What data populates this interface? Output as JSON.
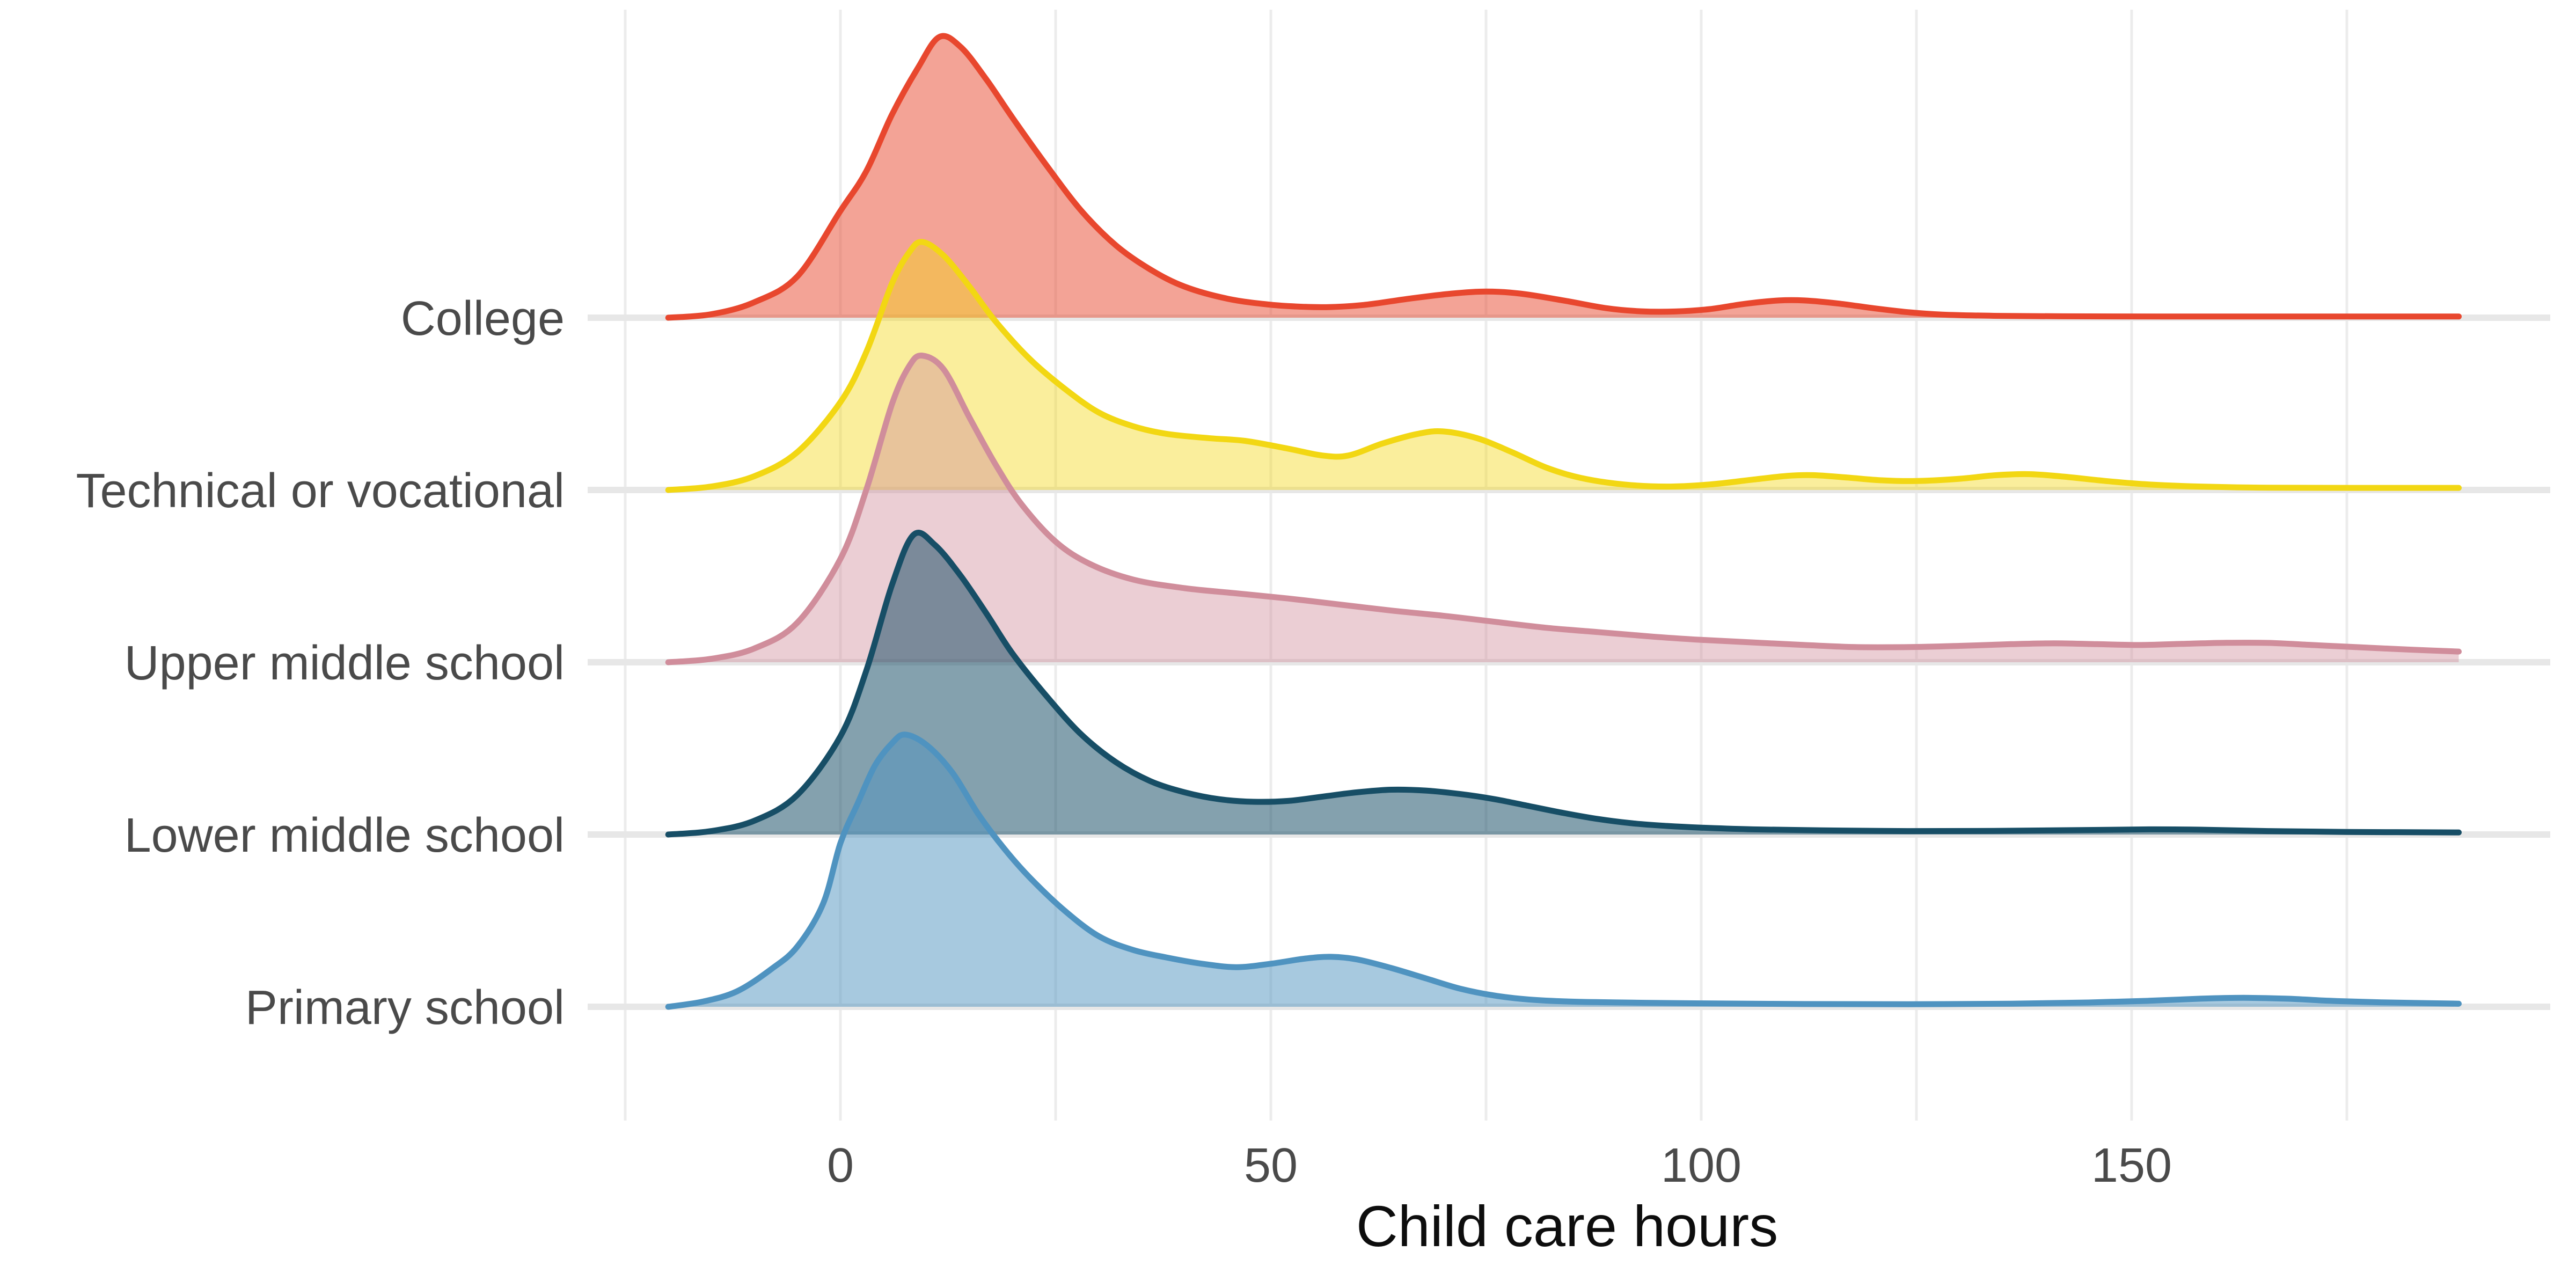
{
  "chart_data": {
    "type": "area",
    "subtype": "ridgeline-density",
    "title": "",
    "xlabel": "Child care hours",
    "ylabel": "",
    "xlim": [
      -30,
      199
    ],
    "x_ticks": [
      0,
      50,
      100,
      150
    ],
    "x_gridlines": [
      -25,
      0,
      25,
      50,
      75,
      100,
      125,
      150,
      175
    ],
    "grid": "vertical-only",
    "legend": "none",
    "background": "#ffffff",
    "gridline_color": "#ececec",
    "baseline_band_color": "#e7e7e7",
    "tick_label_color": "#4a4a4a",
    "axis_title_color": "#0d0d0d",
    "categories": [
      "College",
      "Technical or vocational",
      "Upper middle school",
      "Lower middle school",
      "Primary school"
    ],
    "units": {
      "x": "hours",
      "height": "density, fraction of row spacing"
    },
    "series": [
      {
        "name": "College",
        "color": "#e8472e",
        "fill_opacity": 0.5,
        "points": [
          [
            -20,
            0
          ],
          [
            -15,
            0.02
          ],
          [
            -10,
            0.09
          ],
          [
            -5,
            0.24
          ],
          [
            0,
            0.62
          ],
          [
            3,
            0.85
          ],
          [
            6,
            1.18
          ],
          [
            9,
            1.45
          ],
          [
            11.5,
            1.63
          ],
          [
            14,
            1.57
          ],
          [
            17,
            1.38
          ],
          [
            20,
            1.16
          ],
          [
            24,
            0.88
          ],
          [
            28,
            0.62
          ],
          [
            32,
            0.42
          ],
          [
            36,
            0.28
          ],
          [
            40,
            0.18
          ],
          [
            45,
            0.11
          ],
          [
            50,
            0.075
          ],
          [
            54,
            0.063
          ],
          [
            57,
            0.062
          ],
          [
            61,
            0.075
          ],
          [
            66,
            0.11
          ],
          [
            71,
            0.14
          ],
          [
            75,
            0.152
          ],
          [
            79,
            0.14
          ],
          [
            84,
            0.1
          ],
          [
            89,
            0.055
          ],
          [
            93,
            0.037
          ],
          [
            97,
            0.036
          ],
          [
            101,
            0.05
          ],
          [
            105,
            0.08
          ],
          [
            109,
            0.1
          ],
          [
            112,
            0.1
          ],
          [
            116,
            0.082
          ],
          [
            120,
            0.055
          ],
          [
            124,
            0.032
          ],
          [
            128,
            0.018
          ],
          [
            134,
            0.011
          ],
          [
            142,
            0.008
          ],
          [
            155,
            0.007
          ],
          [
            170,
            0.007
          ],
          [
            188,
            0.007
          ]
        ]
      },
      {
        "name": "Technical or vocational",
        "color": "#f2d713",
        "fill_opacity": 0.42,
        "points": [
          [
            -20,
            0
          ],
          [
            -15,
            0.02
          ],
          [
            -10,
            0.08
          ],
          [
            -5,
            0.22
          ],
          [
            0,
            0.51
          ],
          [
            3,
            0.8
          ],
          [
            6,
            1.2
          ],
          [
            8,
            1.38
          ],
          [
            9.5,
            1.44
          ],
          [
            12,
            1.36
          ],
          [
            15,
            1.18
          ],
          [
            18,
            0.98
          ],
          [
            22,
            0.76
          ],
          [
            26,
            0.59
          ],
          [
            30,
            0.45
          ],
          [
            34,
            0.37
          ],
          [
            38,
            0.325
          ],
          [
            43,
            0.3
          ],
          [
            47,
            0.285
          ],
          [
            52,
            0.24
          ],
          [
            56,
            0.2
          ],
          [
            59,
            0.2
          ],
          [
            63,
            0.27
          ],
          [
            67,
            0.325
          ],
          [
            70,
            0.34
          ],
          [
            74,
            0.3
          ],
          [
            78,
            0.22
          ],
          [
            82,
            0.13
          ],
          [
            86,
            0.07
          ],
          [
            91,
            0.032
          ],
          [
            96,
            0.02
          ],
          [
            101,
            0.032
          ],
          [
            106,
            0.06
          ],
          [
            110,
            0.082
          ],
          [
            113,
            0.086
          ],
          [
            117,
            0.072
          ],
          [
            121,
            0.056
          ],
          [
            125,
            0.052
          ],
          [
            130,
            0.065
          ],
          [
            134,
            0.085
          ],
          [
            138,
            0.092
          ],
          [
            142,
            0.078
          ],
          [
            147,
            0.052
          ],
          [
            152,
            0.032
          ],
          [
            158,
            0.02
          ],
          [
            166,
            0.013
          ],
          [
            176,
            0.012
          ],
          [
            188,
            0.012
          ]
        ]
      },
      {
        "name": "Upper middle school",
        "color": "#d08d9b",
        "fill_opacity": 0.43,
        "points": [
          [
            -20,
            0
          ],
          [
            -15,
            0.02
          ],
          [
            -10,
            0.08
          ],
          [
            -5,
            0.23
          ],
          [
            0,
            0.6
          ],
          [
            3,
            1.0
          ],
          [
            6,
            1.5
          ],
          [
            8,
            1.72
          ],
          [
            9.5,
            1.78
          ],
          [
            12,
            1.7
          ],
          [
            15,
            1.42
          ],
          [
            18,
            1.15
          ],
          [
            21,
            0.92
          ],
          [
            25,
            0.7
          ],
          [
            29,
            0.57
          ],
          [
            34,
            0.48
          ],
          [
            40,
            0.43
          ],
          [
            46,
            0.4
          ],
          [
            52,
            0.37
          ],
          [
            58,
            0.335
          ],
          [
            64,
            0.3
          ],
          [
            70,
            0.27
          ],
          [
            76,
            0.235
          ],
          [
            82,
            0.2
          ],
          [
            88,
            0.175
          ],
          [
            94,
            0.15
          ],
          [
            100,
            0.13
          ],
          [
            106,
            0.115
          ],
          [
            112,
            0.1
          ],
          [
            118,
            0.088
          ],
          [
            124,
            0.088
          ],
          [
            130,
            0.095
          ],
          [
            136,
            0.105
          ],
          [
            141,
            0.11
          ],
          [
            146,
            0.105
          ],
          [
            151,
            0.1
          ],
          [
            156,
            0.107
          ],
          [
            161,
            0.113
          ],
          [
            166,
            0.112
          ],
          [
            171,
            0.1
          ],
          [
            176,
            0.088
          ],
          [
            182,
            0.074
          ],
          [
            188,
            0.062
          ]
        ]
      },
      {
        "name": "Lower middle school",
        "color": "#174e66",
        "fill_opacity": 0.53,
        "points": [
          [
            -20,
            0
          ],
          [
            -15,
            0.02
          ],
          [
            -10,
            0.08
          ],
          [
            -5,
            0.23
          ],
          [
            0,
            0.57
          ],
          [
            3,
            0.95
          ],
          [
            6,
            1.45
          ],
          [
            8.5,
            1.74
          ],
          [
            11,
            1.68
          ],
          [
            14,
            1.5
          ],
          [
            17,
            1.28
          ],
          [
            20,
            1.05
          ],
          [
            24,
            0.8
          ],
          [
            28,
            0.58
          ],
          [
            32,
            0.42
          ],
          [
            36,
            0.31
          ],
          [
            40,
            0.245
          ],
          [
            44,
            0.205
          ],
          [
            48,
            0.19
          ],
          [
            52,
            0.195
          ],
          [
            56,
            0.22
          ],
          [
            60,
            0.245
          ],
          [
            64,
            0.26
          ],
          [
            68,
            0.255
          ],
          [
            72,
            0.235
          ],
          [
            76,
            0.205
          ],
          [
            80,
            0.165
          ],
          [
            84,
            0.125
          ],
          [
            88,
            0.09
          ],
          [
            92,
            0.065
          ],
          [
            96,
            0.05
          ],
          [
            100,
            0.04
          ],
          [
            106,
            0.03
          ],
          [
            114,
            0.024
          ],
          [
            124,
            0.02
          ],
          [
            134,
            0.021
          ],
          [
            144,
            0.026
          ],
          [
            152,
            0.03
          ],
          [
            158,
            0.028
          ],
          [
            166,
            0.02
          ],
          [
            175,
            0.015
          ],
          [
            188,
            0.012
          ]
        ]
      },
      {
        "name": "Primary school",
        "color": "#4f93c0",
        "fill_opacity": 0.5,
        "points": [
          [
            -20,
            0
          ],
          [
            -16,
            0.03
          ],
          [
            -12,
            0.09
          ],
          [
            -8,
            0.22
          ],
          [
            -5,
            0.35
          ],
          [
            -2,
            0.6
          ],
          [
            0,
            0.95
          ],
          [
            2,
            1.18
          ],
          [
            4,
            1.4
          ],
          [
            6,
            1.53
          ],
          [
            7.5,
            1.58
          ],
          [
            10,
            1.52
          ],
          [
            13,
            1.36
          ],
          [
            16,
            1.12
          ],
          [
            19,
            0.92
          ],
          [
            22,
            0.75
          ],
          [
            26,
            0.56
          ],
          [
            30,
            0.41
          ],
          [
            34,
            0.33
          ],
          [
            38,
            0.285
          ],
          [
            42,
            0.25
          ],
          [
            46,
            0.23
          ],
          [
            50,
            0.25
          ],
          [
            54,
            0.28
          ],
          [
            57,
            0.29
          ],
          [
            60,
            0.275
          ],
          [
            64,
            0.225
          ],
          [
            68,
            0.165
          ],
          [
            72,
            0.105
          ],
          [
            76,
            0.065
          ],
          [
            80,
            0.042
          ],
          [
            85,
            0.03
          ],
          [
            92,
            0.024
          ],
          [
            100,
            0.02
          ],
          [
            112,
            0.016
          ],
          [
            124,
            0.015
          ],
          [
            136,
            0.018
          ],
          [
            145,
            0.025
          ],
          [
            152,
            0.035
          ],
          [
            158,
            0.047
          ],
          [
            163,
            0.052
          ],
          [
            168,
            0.047
          ],
          [
            173,
            0.035
          ],
          [
            179,
            0.026
          ],
          [
            188,
            0.018
          ]
        ]
      }
    ]
  }
}
